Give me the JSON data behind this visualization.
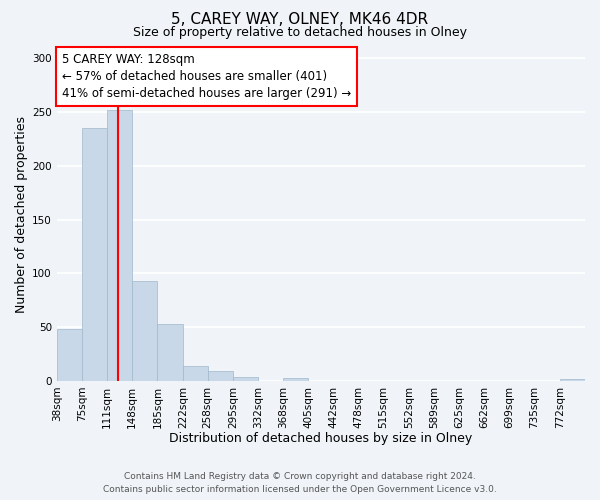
{
  "title": "5, CAREY WAY, OLNEY, MK46 4DR",
  "subtitle": "Size of property relative to detached houses in Olney",
  "xlabel": "Distribution of detached houses by size in Olney",
  "ylabel": "Number of detached properties",
  "footer_line1": "Contains HM Land Registry data © Crown copyright and database right 2024.",
  "footer_line2": "Contains public sector information licensed under the Open Government Licence v3.0.",
  "bin_labels": [
    "38sqm",
    "75sqm",
    "111sqm",
    "148sqm",
    "185sqm",
    "222sqm",
    "258sqm",
    "295sqm",
    "332sqm",
    "368sqm",
    "405sqm",
    "442sqm",
    "478sqm",
    "515sqm",
    "552sqm",
    "589sqm",
    "625sqm",
    "662sqm",
    "699sqm",
    "735sqm",
    "772sqm"
  ],
  "bar_heights": [
    48,
    235,
    252,
    93,
    53,
    14,
    9,
    4,
    0,
    3,
    0,
    0,
    0,
    0,
    0,
    0,
    0,
    0,
    0,
    0,
    2
  ],
  "bar_color": "#c8d8e8",
  "bar_edgecolor": "#a0b8cc",
  "vline_x": 128,
  "vline_color": "red",
  "ylim": [
    0,
    310
  ],
  "yticks": [
    0,
    50,
    100,
    150,
    200,
    250,
    300
  ],
  "annotation_text": "5 CAREY WAY: 128sqm\n← 57% of detached houses are smaller (401)\n41% of semi-detached houses are larger (291) →",
  "annotation_box_color": "white",
  "annotation_box_edgecolor": "red",
  "bg_color": "#f0f4f8",
  "grid_color": "white",
  "title_fontsize": 11,
  "subtitle_fontsize": 9,
  "axis_fontsize": 9,
  "tick_fontsize": 7.5,
  "annotation_fontsize": 8.5,
  "footer_fontsize": 6.5,
  "bin_edges": [
    38,
    75,
    111,
    148,
    185,
    222,
    258,
    295,
    332,
    368,
    405,
    442,
    478,
    515,
    552,
    589,
    625,
    662,
    699,
    735,
    772
  ]
}
